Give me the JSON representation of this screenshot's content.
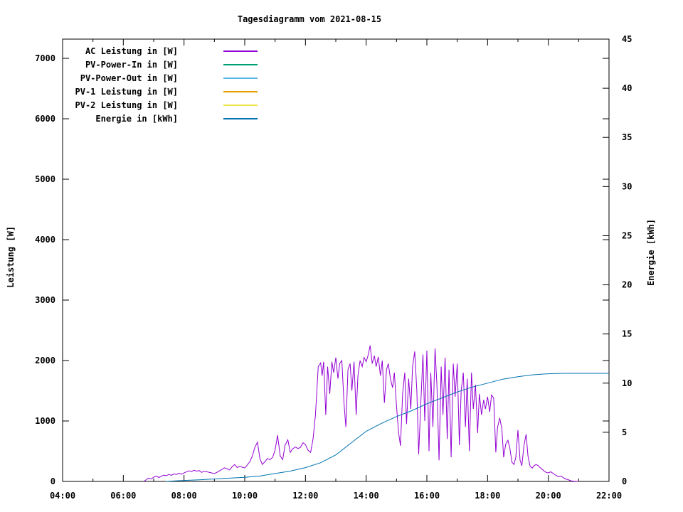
{
  "chart_data": {
    "type": "line",
    "title": "Tagesdiagramm vom 2021-08-15",
    "xlabel": "",
    "ylabel": "Leistung [W]",
    "y2label": "Energie [kWh]",
    "grid": false,
    "legend_position": "top-left-inside",
    "xlim_hours": [
      4,
      22
    ],
    "ylim": [
      0,
      7318
    ],
    "y2lim": [
      0,
      45
    ],
    "x_ticks": [
      {
        "t": 4,
        "label": "04:00"
      },
      {
        "t": 6,
        "label": "06:00"
      },
      {
        "t": 8,
        "label": "08:00"
      },
      {
        "t": 10,
        "label": "10:00"
      },
      {
        "t": 12,
        "label": "12:00"
      },
      {
        "t": 14,
        "label": "14:00"
      },
      {
        "t": 16,
        "label": "16:00"
      },
      {
        "t": 18,
        "label": "18:00"
      },
      {
        "t": 20,
        "label": "20:00"
      },
      {
        "t": 22,
        "label": "22:00"
      }
    ],
    "x_minor_hours": [
      5,
      7,
      9,
      11,
      13,
      15,
      17,
      19,
      21
    ],
    "y_ticks": [
      0,
      1000,
      2000,
      3000,
      4000,
      5000,
      6000,
      7000
    ],
    "y2_ticks": [
      0,
      5,
      10,
      15,
      20,
      25,
      30,
      35,
      40,
      45
    ],
    "series": [
      {
        "id": "ac-leistung",
        "name": "AC Leistung in [W]",
        "color": "#9400d3",
        "axis": "y1",
        "points": [
          [
            6.67,
            0
          ],
          [
            6.75,
            25
          ],
          [
            6.83,
            55
          ],
          [
            6.92,
            40
          ],
          [
            7,
            70
          ],
          [
            7.08,
            90
          ],
          [
            7.17,
            65
          ],
          [
            7.25,
            85
          ],
          [
            7.33,
            105
          ],
          [
            7.42,
            95
          ],
          [
            7.5,
            115
          ],
          [
            7.58,
            100
          ],
          [
            7.67,
            125
          ],
          [
            7.75,
            115
          ],
          [
            7.83,
            135
          ],
          [
            7.92,
            120
          ],
          [
            8,
            140
          ],
          [
            8.08,
            160
          ],
          [
            8.17,
            175
          ],
          [
            8.25,
            165
          ],
          [
            8.33,
            185
          ],
          [
            8.42,
            170
          ],
          [
            8.5,
            180
          ],
          [
            8.58,
            150
          ],
          [
            8.67,
            170
          ],
          [
            8.75,
            160
          ],
          [
            8.83,
            150
          ],
          [
            8.92,
            140
          ],
          [
            9,
            130
          ],
          [
            9.08,
            150
          ],
          [
            9.17,
            175
          ],
          [
            9.25,
            200
          ],
          [
            9.33,
            225
          ],
          [
            9.42,
            210
          ],
          [
            9.5,
            190
          ],
          [
            9.58,
            240
          ],
          [
            9.67,
            280
          ],
          [
            9.75,
            230
          ],
          [
            9.83,
            250
          ],
          [
            9.92,
            235
          ],
          [
            10,
            222
          ],
          [
            10.08,
            270
          ],
          [
            10.17,
            330
          ],
          [
            10.25,
            420
          ],
          [
            10.33,
            560
          ],
          [
            10.42,
            650
          ],
          [
            10.5,
            380
          ],
          [
            10.58,
            280
          ],
          [
            10.67,
            330
          ],
          [
            10.75,
            380
          ],
          [
            10.83,
            360
          ],
          [
            10.92,
            400
          ],
          [
            11,
            520
          ],
          [
            11.08,
            765
          ],
          [
            11.17,
            420
          ],
          [
            11.25,
            360
          ],
          [
            11.33,
            600
          ],
          [
            11.42,
            690
          ],
          [
            11.5,
            480
          ],
          [
            11.58,
            540
          ],
          [
            11.67,
            570
          ],
          [
            11.75,
            545
          ],
          [
            11.83,
            560
          ],
          [
            11.92,
            640
          ],
          [
            12,
            610
          ],
          [
            12.08,
            520
          ],
          [
            12.17,
            480
          ],
          [
            12.25,
            700
          ],
          [
            12.33,
            1100
          ],
          [
            12.42,
            1900
          ],
          [
            12.5,
            1960
          ],
          [
            12.55,
            1750
          ],
          [
            12.6,
            1980
          ],
          [
            12.67,
            1100
          ],
          [
            12.73,
            1900
          ],
          [
            12.8,
            1450
          ],
          [
            12.87,
            1980
          ],
          [
            12.93,
            1800
          ],
          [
            13,
            2050
          ],
          [
            13.07,
            1700
          ],
          [
            13.13,
            1950
          ],
          [
            13.2,
            2000
          ],
          [
            13.27,
            1300
          ],
          [
            13.33,
            900
          ],
          [
            13.4,
            1850
          ],
          [
            13.47,
            1950
          ],
          [
            13.53,
            1500
          ],
          [
            13.6,
            1980
          ],
          [
            13.67,
            1100
          ],
          [
            13.73,
            1750
          ],
          [
            13.8,
            2000
          ],
          [
            13.87,
            1900
          ],
          [
            13.93,
            2050
          ],
          [
            14,
            1980
          ],
          [
            14.07,
            2100
          ],
          [
            14.13,
            2250
          ],
          [
            14.2,
            1950
          ],
          [
            14.27,
            2080
          ],
          [
            14.33,
            1900
          ],
          [
            14.4,
            2060
          ],
          [
            14.47,
            1750
          ],
          [
            14.53,
            2000
          ],
          [
            14.6,
            1300
          ],
          [
            14.67,
            1850
          ],
          [
            14.73,
            1950
          ],
          [
            14.8,
            1700
          ],
          [
            14.87,
            1550
          ],
          [
            14.93,
            1800
          ],
          [
            15,
            1250
          ],
          [
            15.07,
            800
          ],
          [
            15.13,
            590
          ],
          [
            15.2,
            1450
          ],
          [
            15.27,
            1800
          ],
          [
            15.33,
            950
          ],
          [
            15.4,
            1700
          ],
          [
            15.47,
            1200
          ],
          [
            15.53,
            1900
          ],
          [
            15.6,
            2150
          ],
          [
            15.67,
            1500
          ],
          [
            15.73,
            450
          ],
          [
            15.8,
            1300
          ],
          [
            15.87,
            2100
          ],
          [
            15.93,
            1000
          ],
          [
            16,
            2165
          ],
          [
            16.07,
            500
          ],
          [
            16.13,
            1800
          ],
          [
            16.2,
            900
          ],
          [
            16.27,
            2200
          ],
          [
            16.33,
            1600
          ],
          [
            16.4,
            350
          ],
          [
            16.47,
            1900
          ],
          [
            16.53,
            1100
          ],
          [
            16.6,
            2050
          ],
          [
            16.67,
            700
          ],
          [
            16.73,
            1850
          ],
          [
            16.8,
            400
          ],
          [
            16.87,
            1950
          ],
          [
            16.93,
            1400
          ],
          [
            17,
            1950
          ],
          [
            17.07,
            600
          ],
          [
            17.13,
            1500
          ],
          [
            17.2,
            1800
          ],
          [
            17.27,
            900
          ],
          [
            17.33,
            1700
          ],
          [
            17.4,
            500
          ],
          [
            17.47,
            1800
          ],
          [
            17.53,
            1200
          ],
          [
            17.6,
            1600
          ],
          [
            17.67,
            800
          ],
          [
            17.73,
            1450
          ],
          [
            17.8,
            1100
          ],
          [
            17.87,
            1350
          ],
          [
            17.93,
            1200
          ],
          [
            18,
            1400
          ],
          [
            18.07,
            1150
          ],
          [
            18.13,
            1430
          ],
          [
            18.2,
            1380
          ],
          [
            18.27,
            480
          ],
          [
            18.33,
            900
          ],
          [
            18.4,
            1050
          ],
          [
            18.47,
            870
          ],
          [
            18.53,
            400
          ],
          [
            18.6,
            620
          ],
          [
            18.67,
            680
          ],
          [
            18.73,
            560
          ],
          [
            18.8,
            320
          ],
          [
            18.87,
            280
          ],
          [
            18.93,
            400
          ],
          [
            19,
            850
          ],
          [
            19.07,
            350
          ],
          [
            19.13,
            260
          ],
          [
            19.2,
            600
          ],
          [
            19.27,
            780
          ],
          [
            19.33,
            420
          ],
          [
            19.4,
            250
          ],
          [
            19.47,
            220
          ],
          [
            19.53,
            260
          ],
          [
            19.6,
            280
          ],
          [
            19.67,
            260
          ],
          [
            19.73,
            230
          ],
          [
            19.8,
            200
          ],
          [
            19.87,
            170
          ],
          [
            19.93,
            150
          ],
          [
            20,
            140
          ],
          [
            20.08,
            160
          ],
          [
            20.17,
            130
          ],
          [
            20.25,
            100
          ],
          [
            20.33,
            80
          ],
          [
            20.42,
            90
          ],
          [
            20.5,
            60
          ],
          [
            20.58,
            40
          ],
          [
            20.67,
            25
          ],
          [
            20.75,
            10
          ],
          [
            20.83,
            5
          ],
          [
            21,
            0
          ]
        ]
      },
      {
        "id": "pv-power-in",
        "name": "PV-Power-In in [W]",
        "color": "#009e73",
        "axis": "y1",
        "points": []
      },
      {
        "id": "pv-power-out",
        "name": "PV-Power-Out in [W]",
        "color": "#56b4e9",
        "axis": "y1",
        "points": []
      },
      {
        "id": "pv1-leistung",
        "name": "PV-1 Leistung in [W]",
        "color": "#e69f00",
        "axis": "y1",
        "points": []
      },
      {
        "id": "pv2-leistung",
        "name": "PV-2 Leistung in [W]",
        "color": "#f0e442",
        "axis": "y1",
        "points": []
      },
      {
        "id": "energie",
        "name": "Energie in [kWh]",
        "color": "#0072b2",
        "axis": "y2",
        "points": [
          [
            7.4,
            0
          ],
          [
            8,
            0.1
          ],
          [
            8.5,
            0.17
          ],
          [
            9,
            0.25
          ],
          [
            9.5,
            0.33
          ],
          [
            10,
            0.42
          ],
          [
            10.5,
            0.55
          ],
          [
            11,
            0.8
          ],
          [
            11.5,
            1.05
          ],
          [
            12,
            1.4
          ],
          [
            12.5,
            1.9
          ],
          [
            13,
            2.7
          ],
          [
            13.5,
            3.9
          ],
          [
            14,
            5.1
          ],
          [
            14.5,
            5.9
          ],
          [
            15,
            6.6
          ],
          [
            15.5,
            7.2
          ],
          [
            16,
            7.9
          ],
          [
            16.5,
            8.5
          ],
          [
            17,
            9.1
          ],
          [
            17.5,
            9.6
          ],
          [
            18,
            10.0
          ],
          [
            18.5,
            10.4
          ],
          [
            19,
            10.65
          ],
          [
            19.5,
            10.85
          ],
          [
            20,
            10.95
          ],
          [
            20.5,
            11.0
          ],
          [
            21,
            11.0
          ],
          [
            22,
            11.0
          ]
        ]
      }
    ]
  }
}
